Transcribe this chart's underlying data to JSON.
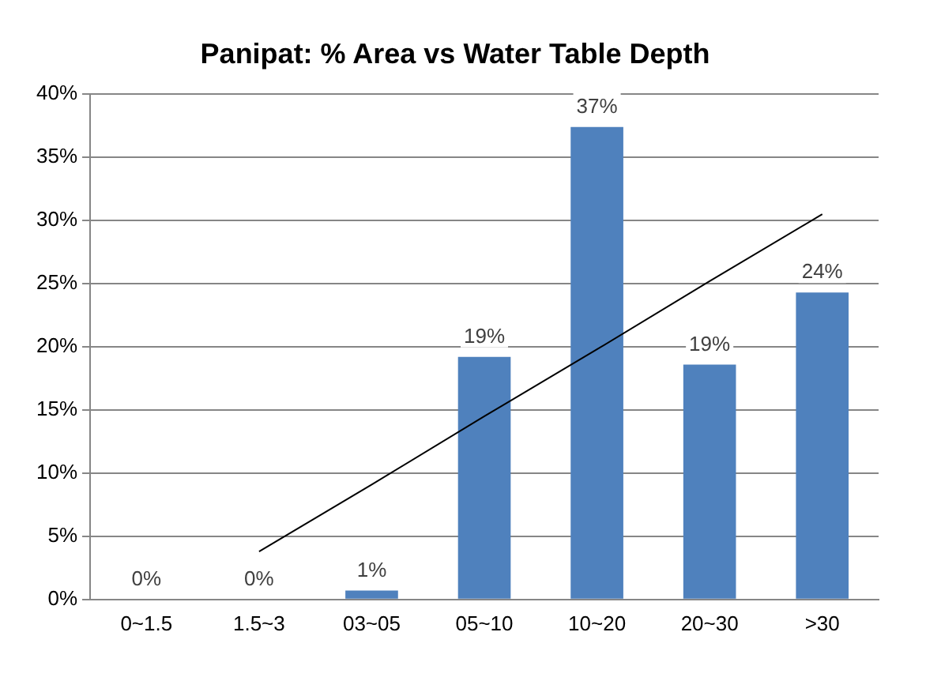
{
  "chart_data": {
    "type": "bar",
    "title": "Panipat: % Area vs Water Table Depth",
    "categories": [
      "0~1.5",
      "1.5~3",
      "03~05",
      "05~10",
      "10~20",
      "20~30",
      ">30"
    ],
    "series": [
      {
        "color": "#4f81bd",
        "values": [
          0,
          0,
          0.7,
          19.2,
          37.4,
          18.6,
          24.3
        ],
        "value_labels": [
          "0%",
          "0%",
          "1%",
          "19%",
          "37%",
          "19%",
          "24%"
        ]
      },
      {
        "type": "line",
        "color": "#000000",
        "values": [
          null,
          3.8,
          9.1,
          14.5,
          19.8,
          25.2,
          30.5
        ]
      }
    ],
    "ylim": [
      0,
      40
    ],
    "yticks": [
      {
        "value": 0,
        "label": "0%"
      },
      {
        "value": 5,
        "label": "5%"
      },
      {
        "value": 10,
        "label": "10%"
      },
      {
        "value": 15,
        "label": "15%"
      },
      {
        "value": 20,
        "label": "20%"
      },
      {
        "value": 25,
        "label": "25%"
      },
      {
        "value": 30,
        "label": "30%"
      },
      {
        "value": 35,
        "label": "35%"
      },
      {
        "value": 40,
        "label": "40%"
      }
    ],
    "grid": "y",
    "legend": false,
    "marker": "none",
    "line_style": "solid"
  }
}
